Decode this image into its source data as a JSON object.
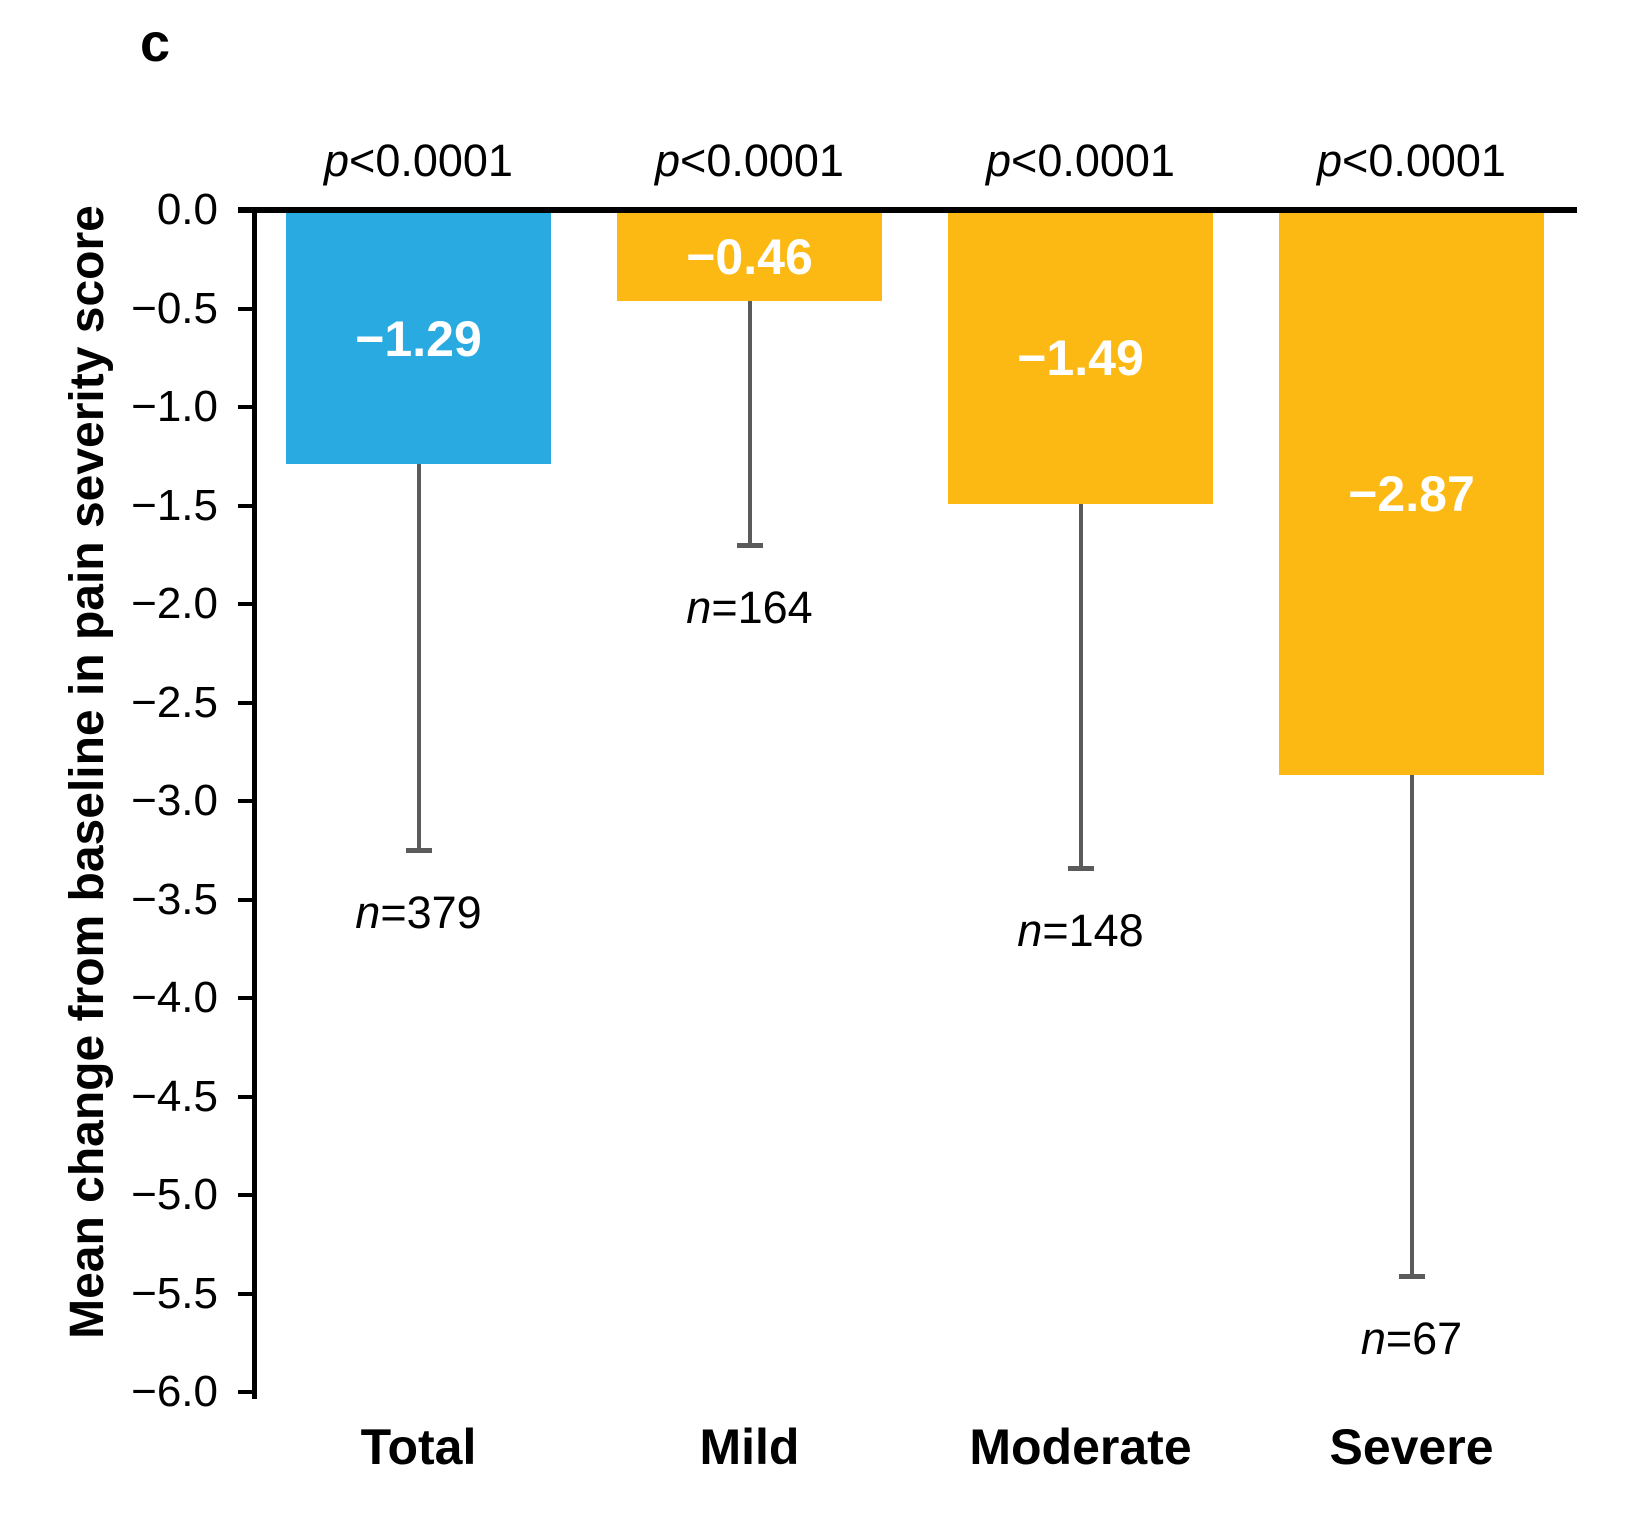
{
  "panel_label": "c",
  "chart_data": {
    "type": "bar",
    "title": "",
    "xlabel": "",
    "ylabel": "Mean change from baseline in pain severity score",
    "ylim": [
      0.0,
      -6.0
    ],
    "ytick_step": 0.5,
    "ytick_labels": [
      "0.0",
      "−0.5",
      "−1.0",
      "−1.5",
      "−2.0",
      "−2.5",
      "−3.0",
      "−3.5",
      "−4.0",
      "−4.5",
      "−5.0",
      "−5.5",
      "−6.0"
    ],
    "grid": false,
    "legend": false,
    "n_var": "n",
    "p_var": "p",
    "whisker_color": "#5B5B5B",
    "categories": [
      "Total",
      "Mild",
      "Moderate",
      "Severe"
    ],
    "series": [
      {
        "category": "Total",
        "value": -1.29,
        "value_label": "−1.29",
        "color": "#29ABE2",
        "whisker_to": -3.25,
        "n_rest": "=379",
        "p_rest": "<0.0001"
      },
      {
        "category": "Mild",
        "value": -0.46,
        "value_label": "−0.46",
        "color": "#FCB813",
        "whisker_to": -1.7,
        "n_rest": "=164",
        "p_rest": "<0.0001"
      },
      {
        "category": "Moderate",
        "value": -1.49,
        "value_label": "−1.49",
        "color": "#FCB813",
        "whisker_to": -3.34,
        "n_rest": "=148",
        "p_rest": "<0.0001"
      },
      {
        "category": "Severe",
        "value": -2.87,
        "value_label": "−2.87",
        "color": "#FCB813",
        "whisker_to": -5.41,
        "n_rest": "=67",
        "p_rest": "<0.0001"
      }
    ]
  }
}
